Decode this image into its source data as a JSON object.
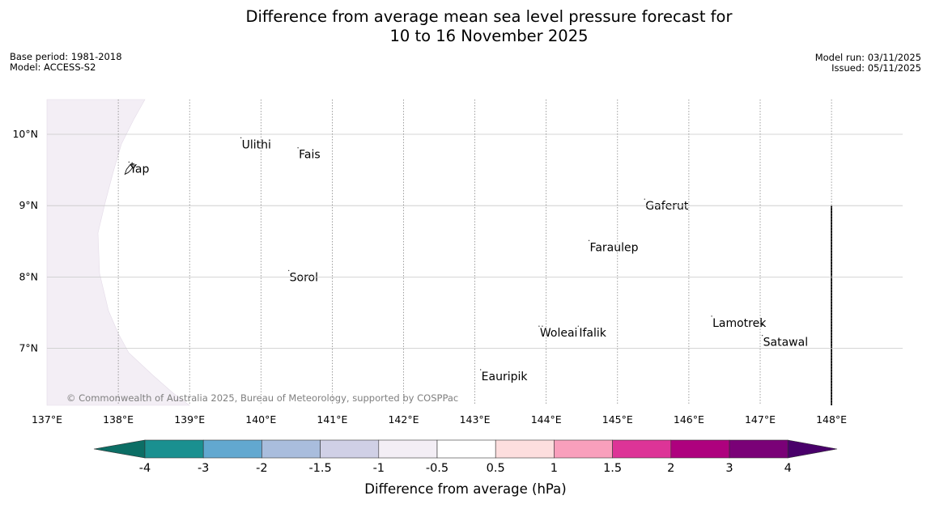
{
  "header": {
    "title_line1": "Difference from average mean sea level pressure forecast for",
    "title_line2": "10 to 16 November 2025",
    "base_period": "Base period: 1981-2018",
    "model": "Model: ACCESS-S2",
    "model_run": "Model run: 03/11/2025",
    "issued": "Issued: 05/11/2025"
  },
  "map": {
    "lon_range": [
      137,
      149
    ],
    "lat_range": [
      6.2,
      10.5
    ],
    "lon_ticks": [
      {
        "value": 137,
        "label": "137°E"
      },
      {
        "value": 138,
        "label": "138°E"
      },
      {
        "value": 139,
        "label": "139°E"
      },
      {
        "value": 140,
        "label": "140°E"
      },
      {
        "value": 141,
        "label": "141°E"
      },
      {
        "value": 142,
        "label": "142°E"
      },
      {
        "value": 143,
        "label": "143°E"
      },
      {
        "value": 144,
        "label": "144°E"
      },
      {
        "value": 145,
        "label": "145°E"
      },
      {
        "value": 146,
        "label": "146°E"
      },
      {
        "value": 147,
        "label": "147°E"
      },
      {
        "value": 148,
        "label": "148°E"
      }
    ],
    "lat_ticks": [
      {
        "value": 10,
        "label": "10°N"
      },
      {
        "value": 9,
        "label": "9°N"
      },
      {
        "value": 8,
        "label": "8°N"
      },
      {
        "value": 7,
        "label": "7°N"
      }
    ],
    "anomaly_field_color": "#f3eef5",
    "places": [
      {
        "name": "Yap",
        "lon": 138.15,
        "lat": 9.52
      },
      {
        "name": "Ulithi",
        "lon": 139.72,
        "lat": 9.86
      },
      {
        "name": "Fais",
        "lon": 140.52,
        "lat": 9.72
      },
      {
        "name": "Gaferut",
        "lon": 145.38,
        "lat": 9.0
      },
      {
        "name": "Faraulep",
        "lon": 144.6,
        "lat": 8.42
      },
      {
        "name": "Sorol",
        "lon": 140.39,
        "lat": 8.0
      },
      {
        "name": "Woleai",
        "lon": 143.9,
        "lat": 7.22
      },
      {
        "name": "Ifalik",
        "lon": 144.45,
        "lat": 7.22
      },
      {
        "name": "Lamotrek",
        "lon": 146.32,
        "lat": 7.36
      },
      {
        "name": "Satawal",
        "lon": 147.03,
        "lat": 7.09
      },
      {
        "name": "Eauripik",
        "lon": 143.08,
        "lat": 6.61
      }
    ],
    "copyright": "© Commonwealth of Australia 2025, Bureau of Meteorology, supported by COSPPac"
  },
  "colorbar": {
    "boundaries": [
      -4,
      -3,
      -2,
      -1.5,
      -1,
      -0.5,
      0.5,
      1,
      1.5,
      2,
      3,
      4
    ],
    "tick_labels": [
      "-4",
      "-3",
      "-2",
      "-1.5",
      "-1",
      "-0.5",
      "0.5",
      "1",
      "1.5",
      "2",
      "3",
      "4"
    ],
    "colors": [
      "#1a9090",
      "#62a8d0",
      "#a9bddd",
      "#d0d0e6",
      "#f3eef5",
      "#ffffff",
      "#fddede",
      "#f99fbc",
      "#dd3497",
      "#ae017e",
      "#7a0177"
    ],
    "under_color": "#0c6e65",
    "over_color": "#49006a",
    "label": "Difference from average (hPa)"
  }
}
